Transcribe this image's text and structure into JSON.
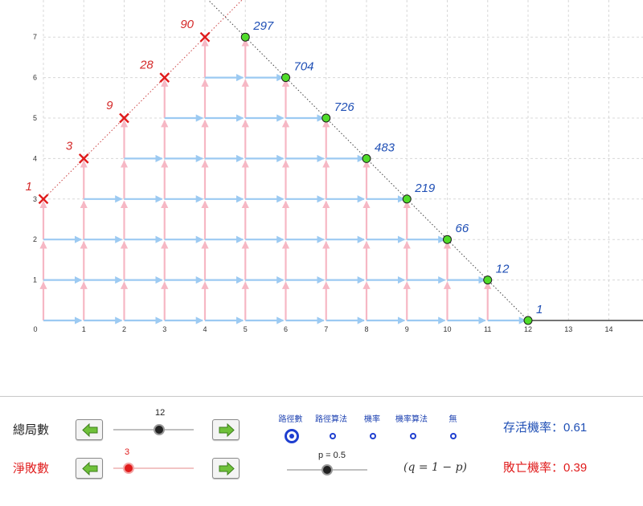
{
  "axes": {
    "x_ticks": [
      "0",
      "1",
      "2",
      "3",
      "4",
      "5",
      "6",
      "7",
      "8",
      "9",
      "10",
      "11",
      "12",
      "13",
      "14"
    ],
    "y_ticks": [
      "1",
      "2",
      "3",
      "4",
      "5",
      "6",
      "7"
    ]
  },
  "win_threshold": 3,
  "total_games": 12,
  "lose_points": [
    {
      "x": 0,
      "y": 3,
      "label": "1"
    },
    {
      "x": 1,
      "y": 4,
      "label": "3"
    },
    {
      "x": 2,
      "y": 5,
      "label": "9"
    },
    {
      "x": 3,
      "y": 6,
      "label": "28"
    },
    {
      "x": 4,
      "y": 7,
      "label": "90"
    }
  ],
  "survive_points": [
    {
      "x": 5,
      "y": 7,
      "label": "297"
    },
    {
      "x": 6,
      "y": 6,
      "label": "704"
    },
    {
      "x": 7,
      "y": 5,
      "label": "726"
    },
    {
      "x": 8,
      "y": 4,
      "label": "483"
    },
    {
      "x": 9,
      "y": 3,
      "label": "219"
    },
    {
      "x": 10,
      "y": 2,
      "label": "66"
    },
    {
      "x": 11,
      "y": 1,
      "label": "12"
    },
    {
      "x": 12,
      "y": 0,
      "label": "1"
    }
  ],
  "colors": {
    "up_arrow": "#f6b7c4",
    "right_arrow": "#9ccaf2",
    "lose_marker": "#e01b1b",
    "lose_label": "#d42a2a",
    "survive_fill": "#4fdc2a",
    "survive_label": "#1f4fb5",
    "grid": "#d8d8d8"
  },
  "controls": {
    "total_games_label": "總局數",
    "total_games_value": "12",
    "net_loss_label": "淨敗數",
    "net_loss_value": "3",
    "p_label": "p = 0.5",
    "p_value": 0.5,
    "q_formula": "(q = 1 − p)",
    "radio_options": [
      "路徑數",
      "路徑算法",
      "機率",
      "機率算法",
      "無"
    ],
    "radio_selected": 0,
    "survive_label": "存活機率：",
    "survive_value": "0.61",
    "death_label": "敗亡機率：",
    "death_value": "0.39"
  }
}
